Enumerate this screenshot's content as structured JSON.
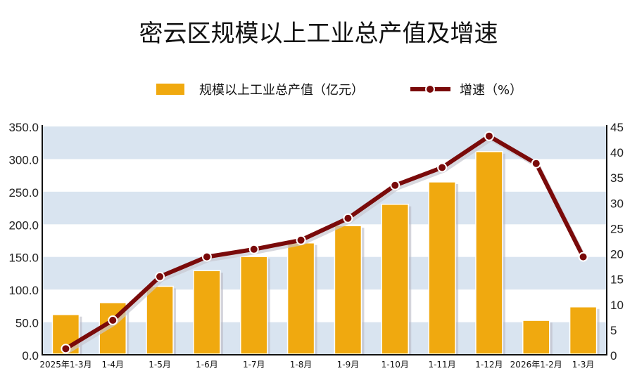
{
  "chart_data": {
    "type": "bar+line",
    "title": "密云区规模以上工业总产值及增速",
    "categories": [
      "2025年1-3月",
      "1-4月",
      "1-5月",
      "1-6月",
      "1-7月",
      "1-8月",
      "1-9月",
      "1-10月",
      "1-11月",
      "1-12月",
      "2026年1-2月",
      "1-3月"
    ],
    "series": [
      {
        "name": "规模以上工业总产值（亿元）",
        "type": "bar",
        "axis": "left",
        "color": "#f0a90f",
        "values": [
          61.7,
          80.0,
          105.0,
          129.0,
          150.6,
          171.5,
          198.0,
          230.7,
          265.0,
          311.5,
          52.7,
          73.5
        ]
      },
      {
        "name": "增速（%）",
        "type": "line",
        "axis": "right",
        "color": "#7a0a0a",
        "values": [
          1.2,
          6.8,
          15.4,
          19.3,
          20.8,
          22.6,
          26.9,
          33.4,
          36.9,
          43.1,
          37.7,
          19.3
        ]
      }
    ],
    "left_axis": {
      "range": [
        0,
        350
      ],
      "ticks": [
        "0.0",
        "50.0",
        "100.0",
        "150.0",
        "200.0",
        "250.0",
        "300.0",
        "350.0"
      ]
    },
    "right_axis": {
      "range": [
        0,
        45
      ],
      "ticks": [
        "0",
        "5",
        "10",
        "15",
        "20",
        "25",
        "30",
        "35",
        "40",
        "45"
      ]
    },
    "grid": "alternating horizontal bands",
    "band_color": "#d9e4f0",
    "legend_placement": "top-center"
  }
}
